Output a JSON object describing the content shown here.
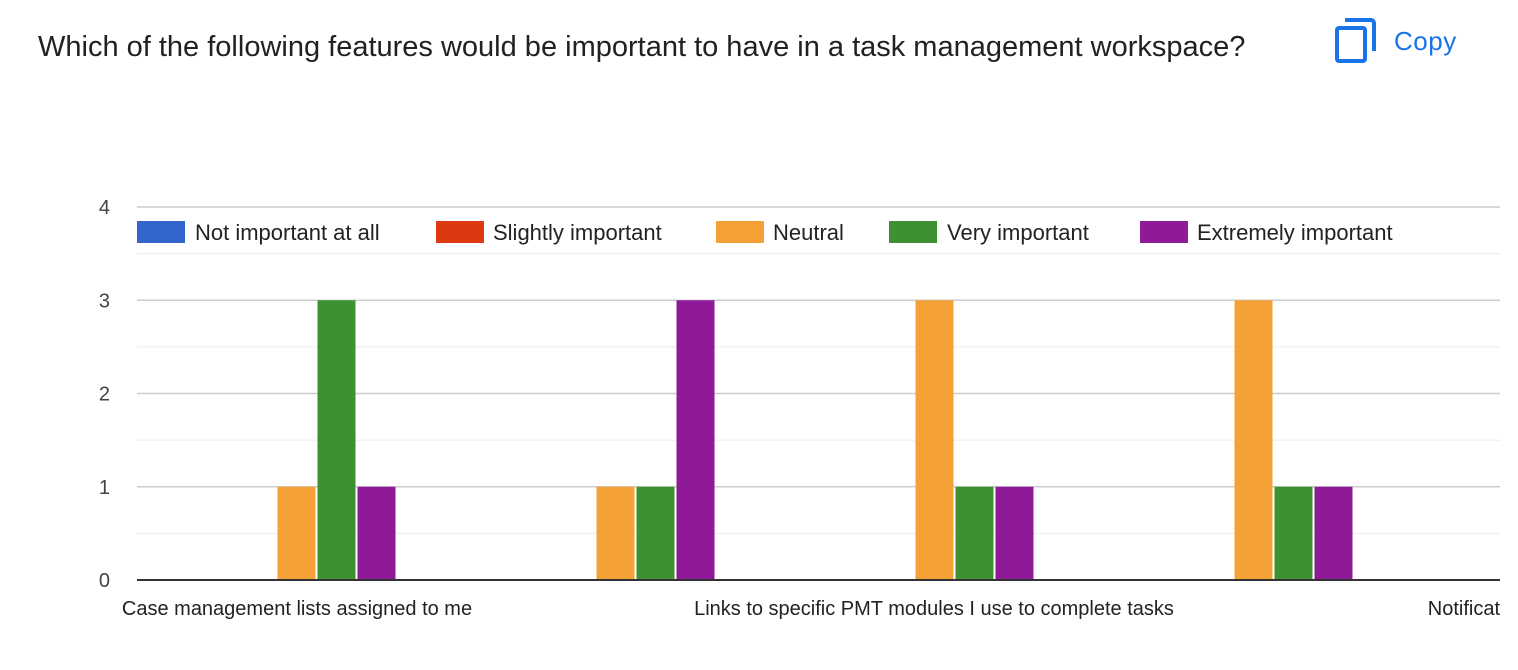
{
  "question": {
    "title": "Which of the following features would be important to have in a task management workspace?"
  },
  "copy_button": {
    "label": "Copy",
    "icon": "copy-icon"
  },
  "colors": {
    "accent": "#1a73e8"
  },
  "chart_data": {
    "type": "bar",
    "categories": [
      "Case management lists assigned to me",
      "Links to specific PMT modules I use to complete tasks",
      "Notificat",
      ""
    ],
    "series": [
      {
        "name": "Not important at all",
        "color": "#3366cc",
        "values": [
          0,
          0,
          0,
          0
        ]
      },
      {
        "name": "Slightly important",
        "color": "#dc3912",
        "values": [
          0,
          0,
          0,
          0
        ]
      },
      {
        "name": "Neutral",
        "color": "#f4a137",
        "values": [
          1,
          1,
          3,
          3
        ]
      },
      {
        "name": "Very important",
        "color": "#3d9131",
        "values": [
          3,
          1,
          1,
          1
        ]
      },
      {
        "name": "Extremely important",
        "color": "#8e1a98",
        "values": [
          1,
          3,
          1,
          1
        ]
      }
    ],
    "ylim": [
      0,
      4
    ],
    "yticks": [
      "0",
      "1",
      "2",
      "3",
      "4"
    ],
    "grid": true,
    "minor_grid": true,
    "legend_position": "top",
    "xlabel": "",
    "ylabel": "",
    "title": ""
  }
}
